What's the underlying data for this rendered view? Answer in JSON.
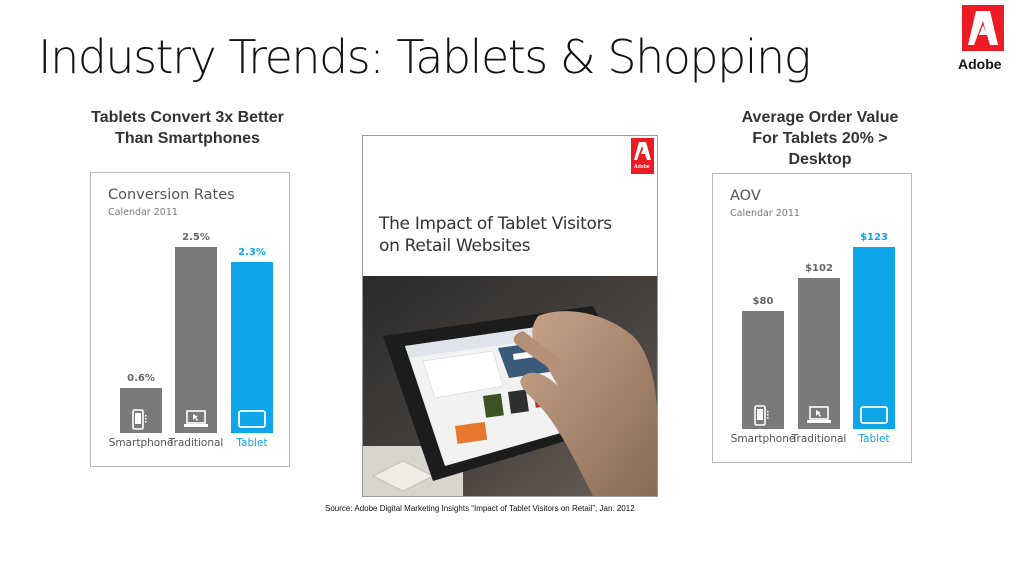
{
  "slide": {
    "title": "Industry Trends: Tablets & Shopping",
    "logo_text": "Adobe",
    "source": "Source:  Adobe Digital Marketing Insights “Impact of Tablet Visitors on Retail”, Jan. 2012"
  },
  "left_panel": {
    "headline_line1": "Tablets Convert 3x Better",
    "headline_line2": "Than Smartphones"
  },
  "right_panel": {
    "headline_line1": "Average Order Value",
    "headline_line2": "For Tablets 20% >",
    "headline_line3": "Desktop"
  },
  "report": {
    "title_line1": "The Impact of Tablet Visitors",
    "title_line2": "on Retail Websites",
    "logo_text": "Adobe"
  },
  "colors": {
    "gray_bar": "#7a7a7a",
    "tablet_bar": "#0ea5e9",
    "adobe_red": "#ed1c24"
  },
  "chart_data": [
    {
      "type": "bar",
      "title": "Conversion Rates",
      "subtitle": "Calendar 2011",
      "categories": [
        "Smartphone",
        "Traditional",
        "Tablet"
      ],
      "values": [
        0.6,
        2.5,
        2.3
      ],
      "value_labels": [
        "0.6%",
        "2.5%",
        "2.3%"
      ],
      "ylim": [
        0,
        2.5
      ],
      "grid": false
    },
    {
      "type": "bar",
      "title": "AOV",
      "subtitle": "Calendar 2011",
      "categories": [
        "Smartphone",
        "Traditional",
        "Tablet"
      ],
      "values": [
        80,
        102,
        123
      ],
      "value_labels": [
        "$80",
        "$102",
        "$123"
      ],
      "ylim": [
        0,
        123
      ],
      "grid": false
    }
  ]
}
